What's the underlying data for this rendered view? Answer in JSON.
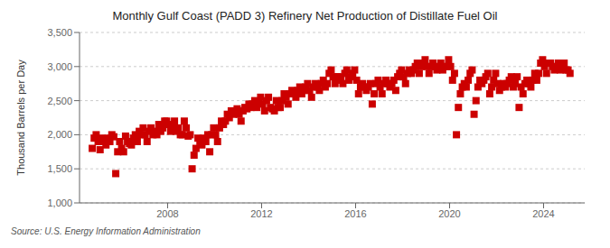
{
  "chart_data": {
    "type": "scatter",
    "title": "Monthly Gulf Coast (PADD 3) Refinery Net Production of Distillate Fuel Oil",
    "ylabel": "Thousand Barrels per Day",
    "annotations": [
      "Source: U.S. Energy Information Administration"
    ],
    "color": "#cc0000",
    "marker": "square",
    "grid": true,
    "xlim": [
      2004.25,
      2025.75
    ],
    "xticks": [
      2008,
      2012,
      2016,
      2020,
      2024
    ],
    "ylim": [
      1000,
      3500
    ],
    "yticks": [
      {
        "value": 1000,
        "label": "1,000"
      },
      {
        "value": 1500,
        "label": "1,500"
      },
      {
        "value": 2000,
        "label": "2,000"
      },
      {
        "value": 2500,
        "label": "2,500"
      },
      {
        "value": 3000,
        "label": "3,000"
      },
      {
        "value": 3500,
        "label": "3,500"
      }
    ],
    "x": [
      2004.791667,
      2004.875,
      2004.958333,
      2005.041667,
      2005.125,
      2005.208333,
      2005.291667,
      2005.375,
      2005.458333,
      2005.541667,
      2005.625,
      2005.708333,
      2005.791667,
      2005.875,
      2005.958333,
      2006.041667,
      2006.125,
      2006.208333,
      2006.291667,
      2006.375,
      2006.458333,
      2006.541667,
      2006.625,
      2006.708333,
      2006.791667,
      2006.875,
      2006.958333,
      2007.041667,
      2007.125,
      2007.208333,
      2007.291667,
      2007.375,
      2007.458333,
      2007.541667,
      2007.625,
      2007.708333,
      2007.791667,
      2007.875,
      2007.958333,
      2008.041667,
      2008.125,
      2008.208333,
      2008.291667,
      2008.375,
      2008.458333,
      2008.541667,
      2008.625,
      2008.708333,
      2008.791667,
      2008.875,
      2008.958333,
      2009.041667,
      2009.125,
      2009.208333,
      2009.291667,
      2009.375,
      2009.458333,
      2009.541667,
      2009.625,
      2009.708333,
      2009.791667,
      2009.875,
      2009.958333,
      2010.041667,
      2010.125,
      2010.208333,
      2010.291667,
      2010.375,
      2010.458333,
      2010.541667,
      2010.625,
      2010.708333,
      2010.791667,
      2010.875,
      2010.958333,
      2011.041667,
      2011.125,
      2011.208333,
      2011.291667,
      2011.375,
      2011.458333,
      2011.541667,
      2011.625,
      2011.708333,
      2011.791667,
      2011.875,
      2011.958333,
      2012.041667,
      2012.125,
      2012.208333,
      2012.291667,
      2012.375,
      2012.458333,
      2012.541667,
      2012.625,
      2012.708333,
      2012.791667,
      2012.875,
      2012.958333,
      2013.041667,
      2013.125,
      2013.208333,
      2013.291667,
      2013.375,
      2013.458333,
      2013.541667,
      2013.625,
      2013.708333,
      2013.791667,
      2013.875,
      2013.958333,
      2014.041667,
      2014.125,
      2014.208333,
      2014.291667,
      2014.375,
      2014.458333,
      2014.541667,
      2014.625,
      2014.708333,
      2014.791667,
      2014.875,
      2014.958333,
      2015.041667,
      2015.125,
      2015.208333,
      2015.291667,
      2015.375,
      2015.458333,
      2015.541667,
      2015.625,
      2015.708333,
      2015.791667,
      2015.875,
      2015.958333,
      2016.041667,
      2016.125,
      2016.208333,
      2016.291667,
      2016.375,
      2016.458333,
      2016.541667,
      2016.625,
      2016.708333,
      2016.791667,
      2016.875,
      2016.958333,
      2017.041667,
      2017.125,
      2017.208333,
      2017.291667,
      2017.375,
      2017.458333,
      2017.541667,
      2017.625,
      2017.708333,
      2017.791667,
      2017.875,
      2017.958333,
      2018.041667,
      2018.125,
      2018.208333,
      2018.291667,
      2018.375,
      2018.458333,
      2018.541667,
      2018.625,
      2018.708333,
      2018.791667,
      2018.875,
      2018.958333,
      2019.041667,
      2019.125,
      2019.208333,
      2019.291667,
      2019.375,
      2019.458333,
      2019.541667,
      2019.625,
      2019.708333,
      2019.791667,
      2019.875,
      2019.958333,
      2020.041667,
      2020.125,
      2020.208333,
      2020.291667,
      2020.375,
      2020.458333,
      2020.541667,
      2020.625,
      2020.708333,
      2020.791667,
      2020.875,
      2020.958333,
      2021.041667,
      2021.125,
      2021.208333,
      2021.291667,
      2021.375,
      2021.458333,
      2021.541667,
      2021.625,
      2021.708333,
      2021.791667,
      2021.875,
      2021.958333,
      2022.041667,
      2022.125,
      2022.208333,
      2022.291667,
      2022.375,
      2022.458333,
      2022.541667,
      2022.625,
      2022.708333,
      2022.791667,
      2022.875,
      2022.958333,
      2023.041667,
      2023.125,
      2023.208333,
      2023.291667,
      2023.375,
      2023.458333,
      2023.541667,
      2023.625,
      2023.708333,
      2023.791667,
      2023.875,
      2023.958333,
      2024.041667,
      2024.125,
      2024.208333,
      2024.291667,
      2024.375,
      2024.458333,
      2024.541667,
      2024.625,
      2024.708333,
      2024.791667,
      2024.875,
      2024.958333,
      2025.041667,
      2025.125
    ],
    "values": [
      1800,
      1950,
      2000,
      1900,
      1780,
      1950,
      1900,
      1850,
      1950,
      1900,
      2000,
      1970,
      1430,
      1750,
      1900,
      1800,
      1750,
      1980,
      1900,
      1870,
      1850,
      1950,
      2000,
      1900,
      2050,
      2000,
      2100,
      2000,
      1900,
      2050,
      2100,
      2000,
      2050,
      2000,
      2150,
      2050,
      2100,
      2200,
      2200,
      2150,
      2050,
      2100,
      2200,
      2050,
      2100,
      2000,
      2000,
      2200,
      2100,
      1980,
      2000,
      1500,
      1700,
      1800,
      1950,
      1900,
      1850,
      1950,
      1900,
      2000,
      1750,
      2000,
      2100,
      2000,
      1900,
      2100,
      2200,
      2150,
      2200,
      2300,
      2250,
      2350,
      2300,
      2350,
      2380,
      2300,
      2200,
      2350,
      2400,
      2380,
      2450,
      2400,
      2450,
      2500,
      2400,
      2480,
      2550,
      2450,
      2350,
      2500,
      2550,
      2400,
      2380,
      2350,
      2500,
      2400,
      2400,
      2500,
      2600,
      2550,
      2450,
      2600,
      2650,
      2600,
      2550,
      2650,
      2700,
      2600,
      2650,
      2700,
      2750,
      2650,
      2550,
      2700,
      2750,
      2700,
      2650,
      2750,
      2800,
      2700,
      2750,
      2900,
      2950,
      2850,
      2750,
      2850,
      2850,
      2800,
      2750,
      2900,
      2950,
      2800,
      2850,
      2900,
      2950,
      2800,
      2600,
      2700,
      2750,
      2700,
      2650,
      2700,
      2750,
      2450,
      2600,
      2750,
      2800,
      2700,
      2600,
      2750,
      2800,
      2750,
      2700,
      2750,
      2800,
      2650,
      2850,
      2900,
      2950,
      2850,
      2750,
      2900,
      2950,
      2900,
      2950,
      3000,
      3050,
      2900,
      3000,
      3050,
      3100,
      3000,
      2900,
      3000,
      3050,
      3000,
      2950,
      3000,
      3050,
      2950,
      3000,
      3000,
      3100,
      3000,
      2800,
      2900,
      2000,
      2400,
      2600,
      2700,
      2750,
      2700,
      2800,
      2900,
      2950,
      2300,
      2500,
      2700,
      2800,
      2750,
      2800,
      2850,
      2900,
      2600,
      2700,
      2800,
      2900,
      2750,
      2650,
      2700,
      2750,
      2700,
      2750,
      2800,
      2850,
      2700,
      2750,
      2850,
      2400,
      2700,
      2600,
      2750,
      2800,
      2750,
      2700,
      2800,
      2900,
      2800,
      2900,
      3050,
      3100,
      3000,
      2900,
      3050,
      3050,
      3000,
      2950,
      3000,
      3050,
      2950,
      3000,
      3050,
      2950,
      2950,
      2900
    ]
  }
}
